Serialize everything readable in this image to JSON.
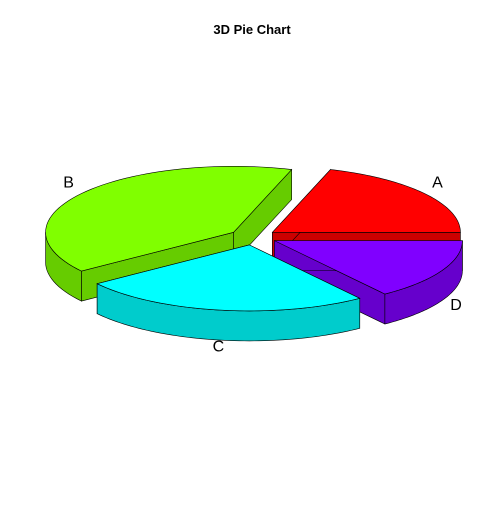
{
  "chart_data": {
    "type": "pie",
    "title": "3D Pie Chart",
    "three_d": true,
    "exploded": true,
    "start_angle_deg": 0,
    "direction": "counterclockwise",
    "slices": [
      {
        "label": "A",
        "value": 20,
        "color": "#FF0000"
      },
      {
        "label": "B",
        "value": 40,
        "color": "#80FF00"
      },
      {
        "label": "C",
        "value": 25,
        "color": "#00FFFF"
      },
      {
        "label": "D",
        "value": 15,
        "color": "#8000FF"
      }
    ]
  }
}
